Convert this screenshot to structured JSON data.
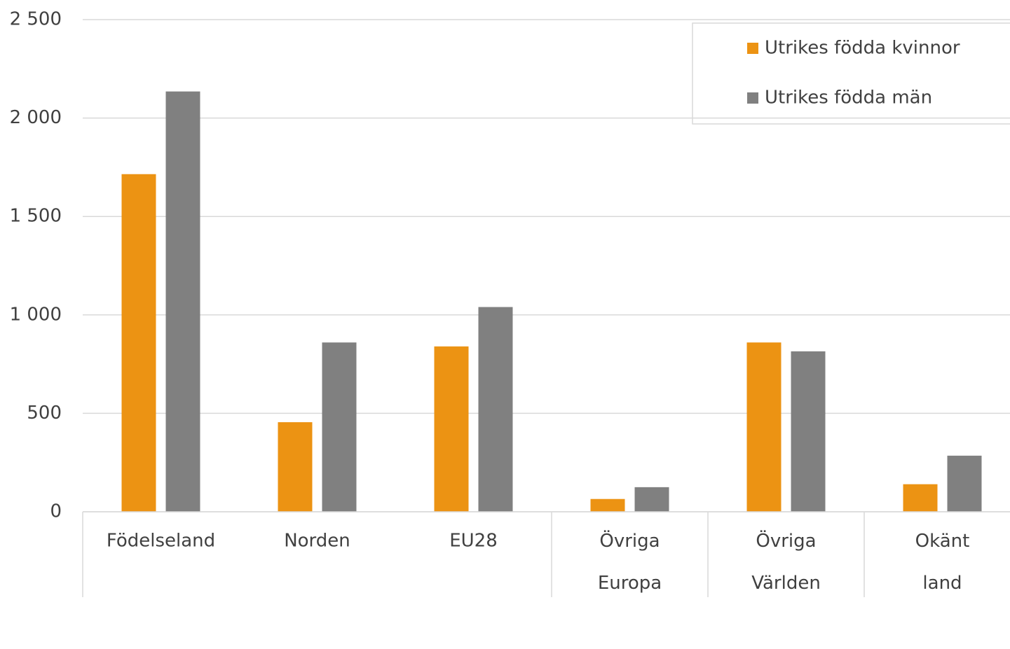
{
  "chart_data": {
    "type": "bar",
    "categories": [
      "Födelseland",
      "Norden",
      "EU28",
      "Övriga Europa",
      "Övriga Världen",
      "Okänt land"
    ],
    "series": [
      {
        "name": "Utrikes födda kvinnor",
        "color": "#ec9313",
        "values": [
          1715,
          455,
          840,
          65,
          860,
          140
        ]
      },
      {
        "name": "Utrikes födda män",
        "color": "#808080",
        "values": [
          2135,
          860,
          1040,
          125,
          815,
          285
        ]
      }
    ],
    "ylim": [
      0,
      2500
    ],
    "yticks": [
      0,
      500,
      {
        "value": 1000,
        "label": "1 000"
      },
      {
        "value": 1500,
        "label": "1 500"
      },
      {
        "value": 2000,
        "label": "2 000"
      },
      {
        "value": 2500,
        "label": "2 500"
      }
    ],
    "grid": true,
    "legend": "top-right"
  }
}
